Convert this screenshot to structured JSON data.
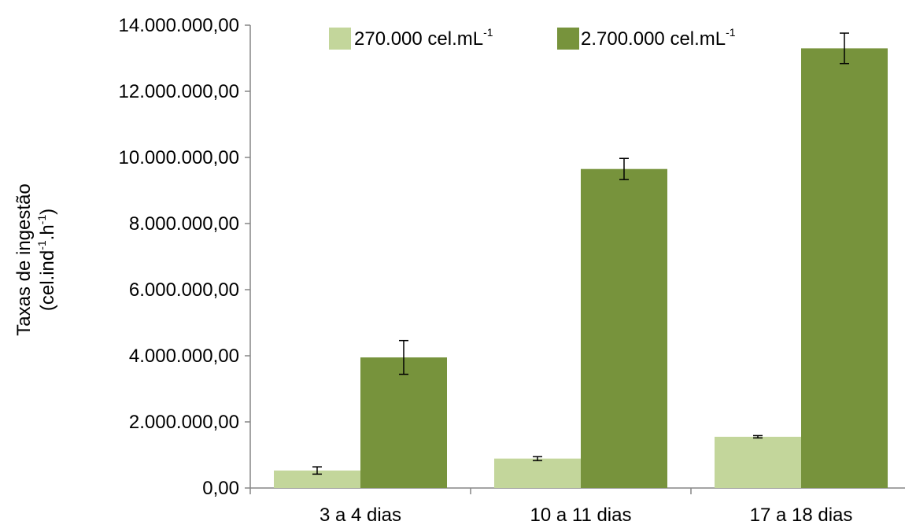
{
  "chart_data": {
    "type": "bar",
    "categories": [
      "3 a 4 dias",
      "10 a 11 dias",
      "17 a 18 dias"
    ],
    "series": [
      {
        "name_parts": [
          "270.000 cel.mL",
          "-1"
        ],
        "color": "#c3d69b",
        "values": [
          530000,
          890000,
          1550000
        ],
        "errors": [
          110000,
          60000,
          35000
        ]
      },
      {
        "name_parts": [
          "2.700.000 cel.mL",
          "-1"
        ],
        "color": "#77933c",
        "values": [
          3950000,
          9650000,
          13300000
        ],
        "errors": [
          510000,
          320000,
          460000
        ]
      }
    ],
    "ylim": [
      0,
      14000000
    ],
    "yticks": [
      0,
      2000000,
      4000000,
      6000000,
      8000000,
      10000000,
      12000000,
      14000000
    ],
    "ytick_labels": [
      "0,00",
      "2.000.000,00",
      "4.000.000,00",
      "6.000.000,00",
      "8.000.000,00",
      "10.000.000,00",
      "12.000.000,00",
      "14.000.000,00"
    ],
    "ylabel_line1": "Taxas de ingestão",
    "ylabel_line2_parts": [
      "(cel.ind",
      "-1",
      ".h",
      "-1",
      ")"
    ],
    "legend_position": "top-center",
    "grid": false
  }
}
